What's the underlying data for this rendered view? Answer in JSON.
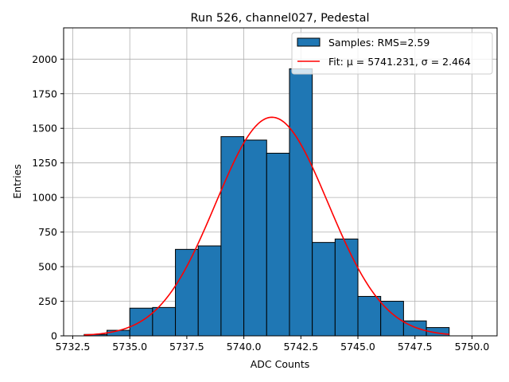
{
  "chart_data": {
    "type": "bar",
    "title": "Run 526, channel027, Pedestal",
    "xlabel": "ADC Counts",
    "ylabel": "Entries",
    "xlim": [
      5732.1,
      5751.1
    ],
    "ylim": [
      0,
      2226
    ],
    "xticks": [
      5732.5,
      5735.0,
      5737.5,
      5740.0,
      5742.5,
      5745.0,
      5747.5,
      5750.0
    ],
    "xtick_labels": [
      "5732.5",
      "5735.0",
      "5737.5",
      "5740.0",
      "5742.5",
      "5745.0",
      "5747.5",
      "5750.0"
    ],
    "yticks": [
      0,
      250,
      500,
      750,
      1000,
      1250,
      1500,
      1750,
      2000
    ],
    "ytick_labels": [
      "0",
      "250",
      "500",
      "750",
      "1000",
      "1250",
      "1500",
      "1750",
      "2000"
    ],
    "grid": true,
    "legend_position": "top-right",
    "bins": [
      {
        "x0": 5733,
        "x1": 5734,
        "count": 10
      },
      {
        "x0": 5734,
        "x1": 5735,
        "count": 40
      },
      {
        "x0": 5735,
        "x1": 5736,
        "count": 200
      },
      {
        "x0": 5736,
        "x1": 5737,
        "count": 205
      },
      {
        "x0": 5737,
        "x1": 5738,
        "count": 625
      },
      {
        "x0": 5738,
        "x1": 5739,
        "count": 650
      },
      {
        "x0": 5739,
        "x1": 5740,
        "count": 1440
      },
      {
        "x0": 5740,
        "x1": 5741,
        "count": 1415
      },
      {
        "x0": 5741,
        "x1": 5742,
        "count": 1320
      },
      {
        "x0": 5742,
        "x1": 5743,
        "count": 1930
      },
      {
        "x0": 5743,
        "x1": 5744,
        "count": 675
      },
      {
        "x0": 5744,
        "x1": 5745,
        "count": 700
      },
      {
        "x0": 5745,
        "x1": 5746,
        "count": 285
      },
      {
        "x0": 5746,
        "x1": 5747,
        "count": 250
      },
      {
        "x0": 5747,
        "x1": 5748,
        "count": 108
      },
      {
        "x0": 5748,
        "x1": 5749,
        "count": 60
      }
    ],
    "fit": {
      "mu": 5741.231,
      "sigma": 2.464,
      "amplitude": 1580,
      "x_range": [
        5733,
        5749
      ]
    },
    "series": [
      {
        "name": "Samples: RMS=2.59",
        "kind": "histogram",
        "color": "#1f77b4"
      },
      {
        "name": "Fit: μ = 5741.231, σ = 2.464",
        "kind": "line",
        "color": "#ff0000"
      }
    ]
  }
}
